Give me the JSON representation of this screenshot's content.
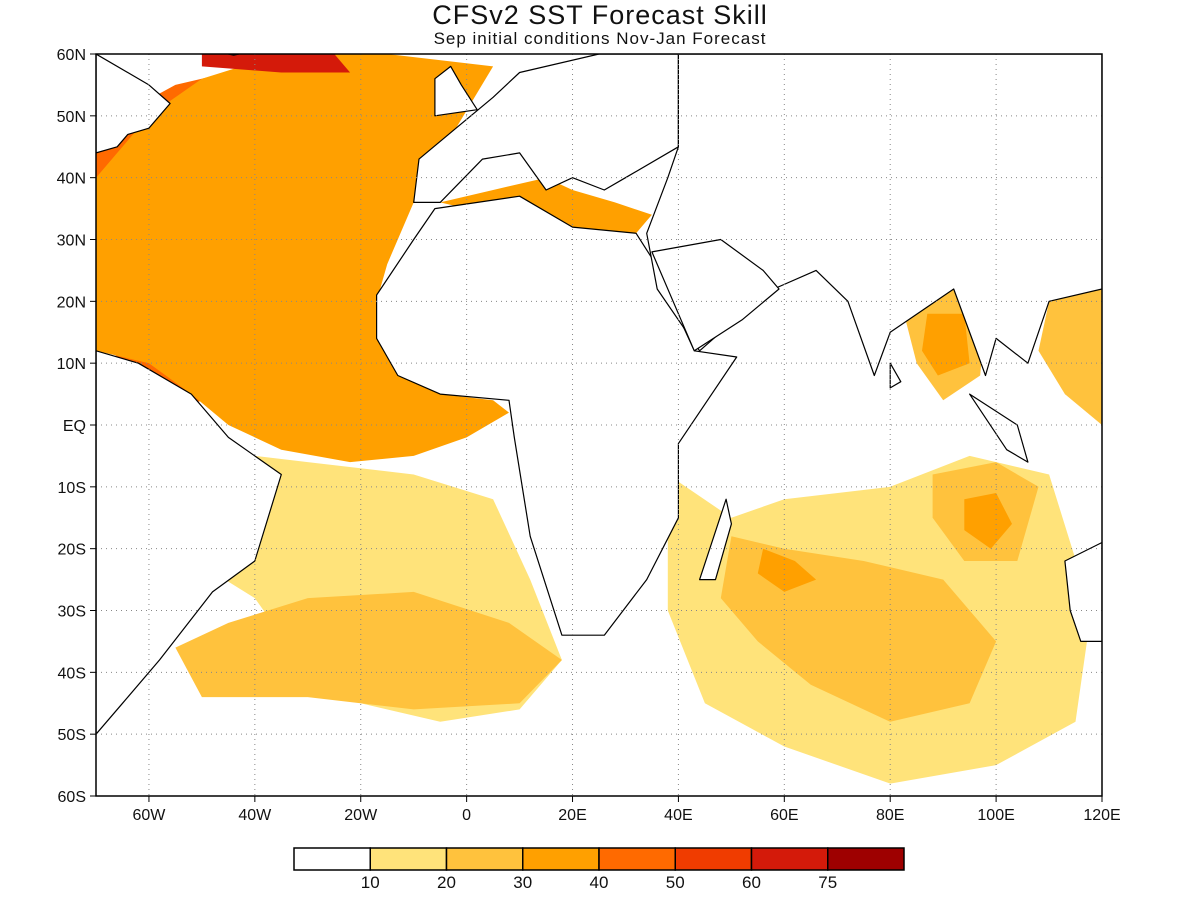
{
  "title": "CFSv2 SST Forecast Skill",
  "subtitle": "Sep initial conditions  Nov-Jan Forecast",
  "chart_data": {
    "type": "heatmap",
    "xlim": [
      -70,
      120
    ],
    "ylim": [
      -60,
      60
    ],
    "x_ticks": [
      "60W",
      "40W",
      "20W",
      "0",
      "20E",
      "40E",
      "60E",
      "80E",
      "100E",
      "120E"
    ],
    "x_tick_values": [
      -60,
      -40,
      -20,
      0,
      20,
      40,
      60,
      80,
      100,
      120
    ],
    "y_ticks": [
      "60N",
      "50N",
      "40N",
      "30N",
      "20N",
      "10N",
      "EQ",
      "10S",
      "20S",
      "30S",
      "40S",
      "50S",
      "60S"
    ],
    "y_tick_values": [
      60,
      50,
      40,
      30,
      20,
      10,
      0,
      -10,
      -20,
      -30,
      -40,
      -50,
      -60
    ],
    "grid": true,
    "colorbar": {
      "levels": [
        "10",
        "20",
        "30",
        "40",
        "50",
        "60",
        "75"
      ],
      "colors": [
        "#ffffff",
        "#ffe37a",
        "#ffc23d",
        "#ffa000",
        "#ff6a00",
        "#f03c00",
        "#d41a0a",
        "#9e0000"
      ]
    },
    "regions": [
      {
        "name": "north-atlantic-high",
        "level": 5,
        "polygon": [
          [
            -70,
            36
          ],
          [
            -55,
            35
          ],
          [
            -45,
            37
          ],
          [
            -30,
            34
          ],
          [
            -20,
            31
          ],
          [
            -22,
            25
          ],
          [
            -35,
            22
          ],
          [
            -50,
            24
          ],
          [
            -65,
            26
          ],
          [
            -70,
            28
          ]
        ]
      },
      {
        "name": "north-atlantic-mid",
        "level": 4,
        "polygon": [
          [
            -70,
            48
          ],
          [
            -55,
            55
          ],
          [
            -40,
            58
          ],
          [
            -25,
            57
          ],
          [
            -10,
            52
          ],
          [
            -12,
            40
          ],
          [
            -18,
            30
          ],
          [
            -20,
            20
          ],
          [
            -30,
            12
          ],
          [
            -45,
            6
          ],
          [
            -55,
            2
          ],
          [
            -62,
            8
          ],
          [
            -70,
            14
          ]
        ]
      },
      {
        "name": "north-atlantic-broad",
        "level": 3,
        "polygon": [
          [
            -70,
            40
          ],
          [
            -60,
            50
          ],
          [
            -50,
            56
          ],
          [
            -35,
            60
          ],
          [
            -15,
            60
          ],
          [
            5,
            58
          ],
          [
            -2,
            48
          ],
          [
            -9,
            43
          ],
          [
            -10,
            36
          ],
          [
            -15,
            26
          ],
          [
            -17,
            20
          ],
          [
            -17,
            14
          ],
          [
            -12,
            8
          ],
          [
            -5,
            5
          ],
          [
            5,
            4
          ],
          [
            8,
            2
          ],
          [
            0,
            -2
          ],
          [
            -10,
            -5
          ],
          [
            -22,
            -6
          ],
          [
            -35,
            -4
          ],
          [
            -45,
            0
          ],
          [
            -52,
            5
          ],
          [
            -60,
            10
          ],
          [
            -70,
            12
          ]
        ]
      },
      {
        "name": "north-sea-high",
        "level": 6,
        "polygon": [
          [
            -50,
            60
          ],
          [
            -25,
            60
          ],
          [
            -22,
            57
          ],
          [
            -35,
            57
          ],
          [
            -50,
            58
          ]
        ]
      },
      {
        "name": "mediterranean",
        "level": 3,
        "polygon": [
          [
            -5,
            36
          ],
          [
            5,
            38
          ],
          [
            15,
            40
          ],
          [
            20,
            38
          ],
          [
            28,
            36
          ],
          [
            35,
            34
          ],
          [
            32,
            31
          ],
          [
            20,
            32
          ],
          [
            10,
            34
          ],
          [
            0,
            35
          ]
        ]
      },
      {
        "name": "red-sea",
        "level": 3,
        "polygon": [
          [
            32,
            29
          ],
          [
            35,
            27
          ],
          [
            40,
            18
          ],
          [
            43,
            13
          ],
          [
            41,
            15
          ],
          [
            36,
            22
          ],
          [
            33,
            27
          ]
        ]
      },
      {
        "name": "central-asia-band",
        "level": 1,
        "polygon": [
          [
            58,
            60
          ],
          [
            105,
            60
          ],
          [
            100,
            45
          ],
          [
            90,
            30
          ],
          [
            75,
            25
          ],
          [
            65,
            32
          ],
          [
            58,
            45
          ]
        ]
      },
      {
        "name": "central-asia-inner",
        "level": 2,
        "polygon": [
          [
            70,
            60
          ],
          [
            95,
            60
          ],
          [
            85,
            45
          ],
          [
            78,
            42
          ],
          [
            72,
            50
          ]
        ]
      },
      {
        "name": "tropical-atlantic-light",
        "level": 1,
        "polygon": [
          [
            -70,
            -10
          ],
          [
            -55,
            -20
          ],
          [
            -40,
            -28
          ],
          [
            -30,
            -40
          ],
          [
            -20,
            -45
          ],
          [
            -5,
            -48
          ],
          [
            10,
            -46
          ],
          [
            18,
            -38
          ],
          [
            12,
            -25
          ],
          [
            5,
            -12
          ],
          [
            -10,
            -8
          ],
          [
            -30,
            -6
          ],
          [
            -50,
            -4
          ],
          [
            -60,
            0
          ],
          [
            -70,
            4
          ]
        ]
      },
      {
        "name": "south-atlantic-mid",
        "level": 2,
        "polygon": [
          [
            -55,
            -36
          ],
          [
            -45,
            -32
          ],
          [
            -30,
            -28
          ],
          [
            -10,
            -27
          ],
          [
            8,
            -32
          ],
          [
            18,
            -38
          ],
          [
            10,
            -45
          ],
          [
            -10,
            -46
          ],
          [
            -30,
            -44
          ],
          [
            -50,
            -44
          ]
        ]
      },
      {
        "name": "indian-ocean-light",
        "level": 1,
        "polygon": [
          [
            38,
            -8
          ],
          [
            50,
            -15
          ],
          [
            60,
            -12
          ],
          [
            80,
            -10
          ],
          [
            95,
            -5
          ],
          [
            110,
            -8
          ],
          [
            118,
            -30
          ],
          [
            115,
            -48
          ],
          [
            100,
            -55
          ],
          [
            80,
            -58
          ],
          [
            60,
            -52
          ],
          [
            45,
            -45
          ],
          [
            38,
            -30
          ]
        ]
      },
      {
        "name": "indian-ocean-mid",
        "level": 2,
        "polygon": [
          [
            50,
            -18
          ],
          [
            60,
            -20
          ],
          [
            75,
            -22
          ],
          [
            90,
            -25
          ],
          [
            100,
            -35
          ],
          [
            95,
            -45
          ],
          [
            80,
            -48
          ],
          [
            65,
            -42
          ],
          [
            55,
            -35
          ],
          [
            48,
            -28
          ]
        ]
      },
      {
        "name": "indian-ocean-high",
        "level": 3,
        "polygon": [
          [
            56,
            -20
          ],
          [
            62,
            -22
          ],
          [
            66,
            -25
          ],
          [
            60,
            -27
          ],
          [
            55,
            -24
          ]
        ]
      },
      {
        "name": "bay-of-bengal",
        "level": 2,
        "polygon": [
          [
            82,
            20
          ],
          [
            92,
            22
          ],
          [
            98,
            18
          ],
          [
            97,
            8
          ],
          [
            90,
            4
          ],
          [
            85,
            10
          ]
        ]
      },
      {
        "name": "bay-of-bengal-high",
        "level": 3,
        "polygon": [
          [
            87,
            18
          ],
          [
            94,
            18
          ],
          [
            95,
            10
          ],
          [
            89,
            8
          ],
          [
            86,
            12
          ]
        ]
      },
      {
        "name": "eastern-indian-mid",
        "level": 2,
        "polygon": [
          [
            88,
            -8
          ],
          [
            100,
            -6
          ],
          [
            108,
            -10
          ],
          [
            104,
            -22
          ],
          [
            94,
            -22
          ],
          [
            88,
            -15
          ]
        ]
      },
      {
        "name": "eastern-indian-high",
        "level": 3,
        "polygon": [
          [
            94,
            -12
          ],
          [
            100,
            -11
          ],
          [
            103,
            -16
          ],
          [
            99,
            -20
          ],
          [
            94,
            -17
          ]
        ]
      },
      {
        "name": "pacific-warm-pool",
        "level": 2,
        "polygon": [
          [
            110,
            20
          ],
          [
            120,
            22
          ],
          [
            120,
            0
          ],
          [
            113,
            5
          ],
          [
            108,
            12
          ]
        ]
      }
    ],
    "continents": [
      {
        "name": "africa",
        "polygon": [
          [
            -17,
            21
          ],
          [
            -10,
            30
          ],
          [
            -6,
            35
          ],
          [
            10,
            37
          ],
          [
            20,
            32
          ],
          [
            32,
            31
          ],
          [
            35,
            27
          ],
          [
            43,
            12
          ],
          [
            51,
            11
          ],
          [
            40,
            -3
          ],
          [
            40,
            -15
          ],
          [
            34,
            -25
          ],
          [
            26,
            -34
          ],
          [
            18,
            -34
          ],
          [
            12,
            -18
          ],
          [
            9,
            -2
          ],
          [
            8,
            4
          ],
          [
            -5,
            5
          ],
          [
            -13,
            8
          ],
          [
            -17,
            14
          ]
        ]
      },
      {
        "name": "europe",
        "polygon": [
          [
            -10,
            36
          ],
          [
            -9,
            43
          ],
          [
            -2,
            48
          ],
          [
            5,
            53
          ],
          [
            10,
            57
          ],
          [
            25,
            60
          ],
          [
            40,
            60
          ],
          [
            40,
            45
          ],
          [
            30,
            40
          ],
          [
            26,
            38
          ],
          [
            20,
            40
          ],
          [
            15,
            38
          ],
          [
            10,
            44
          ],
          [
            3,
            43
          ],
          [
            -5,
            36
          ]
        ]
      },
      {
        "name": "asia",
        "polygon": [
          [
            40,
            60
          ],
          [
            120,
            60
          ],
          [
            120,
            22
          ],
          [
            110,
            20
          ],
          [
            106,
            10
          ],
          [
            100,
            14
          ],
          [
            98,
            8
          ],
          [
            92,
            22
          ],
          [
            80,
            15
          ],
          [
            77,
            8
          ],
          [
            72,
            20
          ],
          [
            66,
            25
          ],
          [
            58,
            22
          ],
          [
            52,
            18
          ],
          [
            44,
            12
          ],
          [
            36,
            22
          ],
          [
            34,
            31
          ],
          [
            38,
            40
          ],
          [
            40,
            45
          ]
        ]
      },
      {
        "name": "arabia-inner",
        "polygon": [
          [
            35,
            28
          ],
          [
            48,
            30
          ],
          [
            56,
            25
          ],
          [
            59,
            22
          ],
          [
            52,
            17
          ],
          [
            43,
            12
          ]
        ]
      },
      {
        "name": "south-america",
        "polygon": [
          [
            -70,
            12
          ],
          [
            -62,
            10
          ],
          [
            -52,
            5
          ],
          [
            -45,
            -2
          ],
          [
            -35,
            -8
          ],
          [
            -40,
            -22
          ],
          [
            -48,
            -27
          ],
          [
            -58,
            -38
          ],
          [
            -65,
            -45
          ],
          [
            -70,
            -50
          ]
        ]
      },
      {
        "name": "north-america",
        "polygon": [
          [
            -70,
            44
          ],
          [
            -66,
            45
          ],
          [
            -64,
            47
          ],
          [
            -60,
            48
          ],
          [
            -56,
            52
          ],
          [
            -60,
            55
          ],
          [
            -70,
            60
          ]
        ]
      },
      {
        "name": "greenland",
        "polygon": [
          [
            -45,
            60
          ],
          [
            -43,
            60
          ],
          [
            -44,
            59.8
          ]
        ]
      },
      {
        "name": "madagascar",
        "polygon": [
          [
            44,
            -25
          ],
          [
            49,
            -12
          ],
          [
            50,
            -16
          ],
          [
            47,
            -25
          ]
        ]
      },
      {
        "name": "australia",
        "polygon": [
          [
            113,
            -22
          ],
          [
            120,
            -19
          ],
          [
            120,
            -35
          ],
          [
            116,
            -35
          ],
          [
            114,
            -30
          ]
        ]
      },
      {
        "name": "british-isles",
        "polygon": [
          [
            -6,
            50
          ],
          [
            2,
            51
          ],
          [
            -1,
            55
          ],
          [
            -3,
            58
          ],
          [
            -6,
            56
          ]
        ]
      },
      {
        "name": "sri-lanka",
        "polygon": [
          [
            80,
            10
          ],
          [
            82,
            7
          ],
          [
            80,
            6
          ]
        ]
      },
      {
        "name": "borneo-sumatra",
        "polygon": [
          [
            95,
            5
          ],
          [
            104,
            0
          ],
          [
            106,
            -6
          ],
          [
            102,
            -4
          ]
        ]
      }
    ]
  }
}
